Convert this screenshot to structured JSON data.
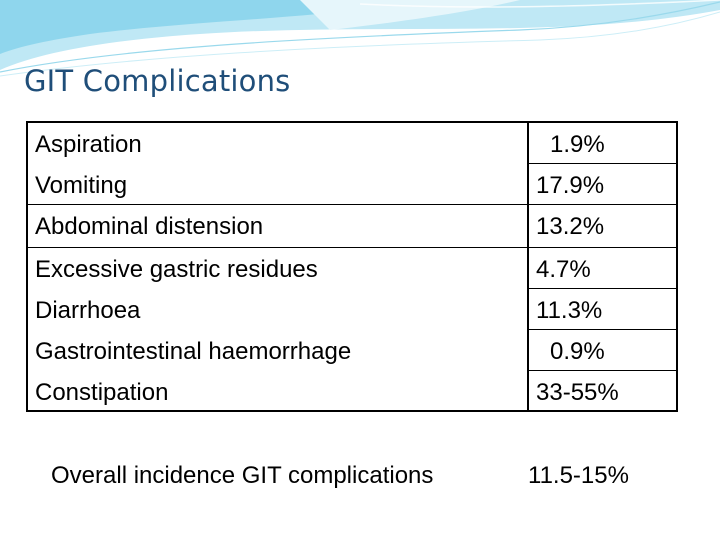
{
  "slide": {
    "title": "GIT Complications",
    "accent_colors": {
      "title": "#1f4e79",
      "swoosh_light": "#bfe8f5",
      "swoosh_mid": "#7fd0ea"
    }
  },
  "table": {
    "rows": [
      {
        "label": "Aspiration",
        "value": "1.9%"
      },
      {
        "label": "Vomiting",
        "value": "17.9%"
      },
      {
        "label": "Abdominal distension",
        "value": "13.2%"
      },
      {
        "label": "Excessive gastric residues",
        "value": "4.7%"
      },
      {
        "label": "Diarrhoea",
        "value": "11.3%"
      },
      {
        "label": "Gastrointestinal haemorrhage",
        "value": "0.9%"
      },
      {
        "label": "Constipation",
        "value": "33-55%"
      }
    ]
  },
  "footer": {
    "label": "Overall incidence GIT complications",
    "value": "11.5-15%"
  }
}
